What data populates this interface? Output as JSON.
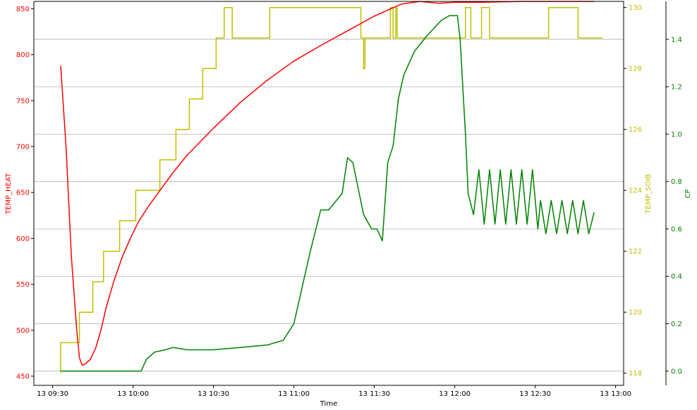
{
  "chart_data": {
    "type": "line",
    "title": "",
    "xlabel": "Time",
    "x_ticks": [
      "13 09:30",
      "13 10:00",
      "13 10:30",
      "13 11:00",
      "13 11:30",
      "13 12:00",
      "13 12:30",
      "13 13:00"
    ],
    "x_tick_minutes": [
      570,
      600,
      630,
      660,
      690,
      720,
      750,
      780
    ],
    "xlim_minutes": [
      563,
      783
    ],
    "grid": "horizontal lines on the CP axis",
    "axes": {
      "left": {
        "label": "TEMP_HEAT",
        "color": "#ff0000",
        "ylim": [
          440,
          858
        ],
        "ticks": [
          450,
          500,
          550,
          600,
          650,
          700,
          750,
          800,
          850
        ]
      },
      "right1": {
        "label": "TEMP_SOIB",
        "color": "#bfbf00",
        "ylim": [
          117.6,
          130.2
        ],
        "ticks": [
          118,
          120,
          122,
          124,
          126,
          128,
          130
        ]
      },
      "right2": {
        "label": "CP",
        "color": "#008000",
        "ylim": [
          -0.06,
          1.56
        ],
        "ticks": [
          0.0,
          0.2,
          0.4,
          0.6,
          0.8,
          1.0,
          1.2,
          1.4
        ],
        "tick_labels": [
          "0.0",
          "0.2",
          "0.4",
          "0.6",
          "0.8",
          "1.0",
          "1.2",
          "1.4"
        ]
      }
    },
    "series": [
      {
        "name": "TEMP_HEAT",
        "axis": "left",
        "color": "#ff0000",
        "x": [
          573,
          575,
          577,
          579,
          580,
          581,
          582,
          584,
          586,
          588,
          590,
          593,
          596,
          599,
          602,
          606,
          610,
          615,
          620,
          630,
          640,
          650,
          660,
          670,
          680,
          690,
          700,
          707,
          714,
          720,
          730,
          745,
          760,
          772
        ],
        "values": [
          788,
          700,
          580,
          500,
          470,
          462,
          463,
          468,
          480,
          500,
          525,
          555,
          580,
          600,
          618,
          636,
          652,
          672,
          690,
          720,
          748,
          772,
          793,
          810,
          826,
          842,
          855,
          858,
          856,
          857,
          857,
          858,
          858,
          858
        ]
      },
      {
        "name": "TEMP_SOIB",
        "axis": "right1",
        "color": "#bfbf00",
        "x": [
          573,
          573,
          580,
          580,
          585,
          585,
          589,
          589,
          595,
          595,
          601,
          601,
          610,
          610,
          616,
          616,
          621,
          621,
          626,
          626,
          631,
          631,
          634,
          634,
          637,
          637,
          651,
          651,
          685,
          685,
          686,
          686,
          686.5,
          686.5,
          696,
          696,
          697,
          697,
          698,
          698,
          698.5,
          698.5,
          724,
          724,
          726,
          726,
          730,
          730,
          733,
          733,
          755,
          755,
          766,
          766,
          775
        ],
        "values": [
          118,
          119,
          119,
          120,
          120,
          121,
          121,
          122,
          122,
          123,
          123,
          124,
          124,
          125,
          125,
          126,
          126,
          127,
          127,
          128,
          128,
          129,
          129,
          130,
          130,
          129,
          129,
          130,
          130,
          129,
          129,
          128,
          128,
          129,
          129,
          130,
          130,
          129,
          129,
          130,
          130,
          129,
          129,
          130,
          130,
          129,
          129,
          130,
          130,
          129,
          129,
          130,
          130,
          129,
          129
        ]
      },
      {
        "name": "CP",
        "axis": "right2",
        "color": "#008000",
        "x": [
          573,
          583,
          593,
          603,
          605,
          608,
          612,
          615,
          620,
          630,
          640,
          650,
          656,
          660,
          663,
          666,
          670,
          673,
          678,
          680,
          682,
          686,
          689,
          691,
          693,
          695,
          697,
          699,
          701,
          705,
          710,
          715,
          718,
          721,
          722,
          724,
          725,
          727,
          729,
          731,
          733,
          735,
          737,
          739,
          741,
          743,
          745,
          747,
          749,
          751,
          752,
          754,
          756,
          758,
          760,
          762,
          764,
          766,
          768,
          770,
          772
        ],
        "values": [
          0.0,
          0.0,
          0.0,
          0.0,
          0.05,
          0.08,
          0.09,
          0.1,
          0.09,
          0.09,
          0.1,
          0.11,
          0.13,
          0.2,
          0.35,
          0.5,
          0.68,
          0.68,
          0.75,
          0.9,
          0.88,
          0.66,
          0.6,
          0.6,
          0.55,
          0.88,
          0.95,
          1.15,
          1.25,
          1.35,
          1.42,
          1.48,
          1.5,
          1.5,
          1.4,
          1.0,
          0.75,
          0.66,
          0.85,
          0.62,
          0.85,
          0.62,
          0.85,
          0.62,
          0.85,
          0.62,
          0.85,
          0.62,
          0.85,
          0.6,
          0.72,
          0.58,
          0.72,
          0.58,
          0.72,
          0.58,
          0.72,
          0.58,
          0.72,
          0.58,
          0.67
        ]
      }
    ]
  }
}
